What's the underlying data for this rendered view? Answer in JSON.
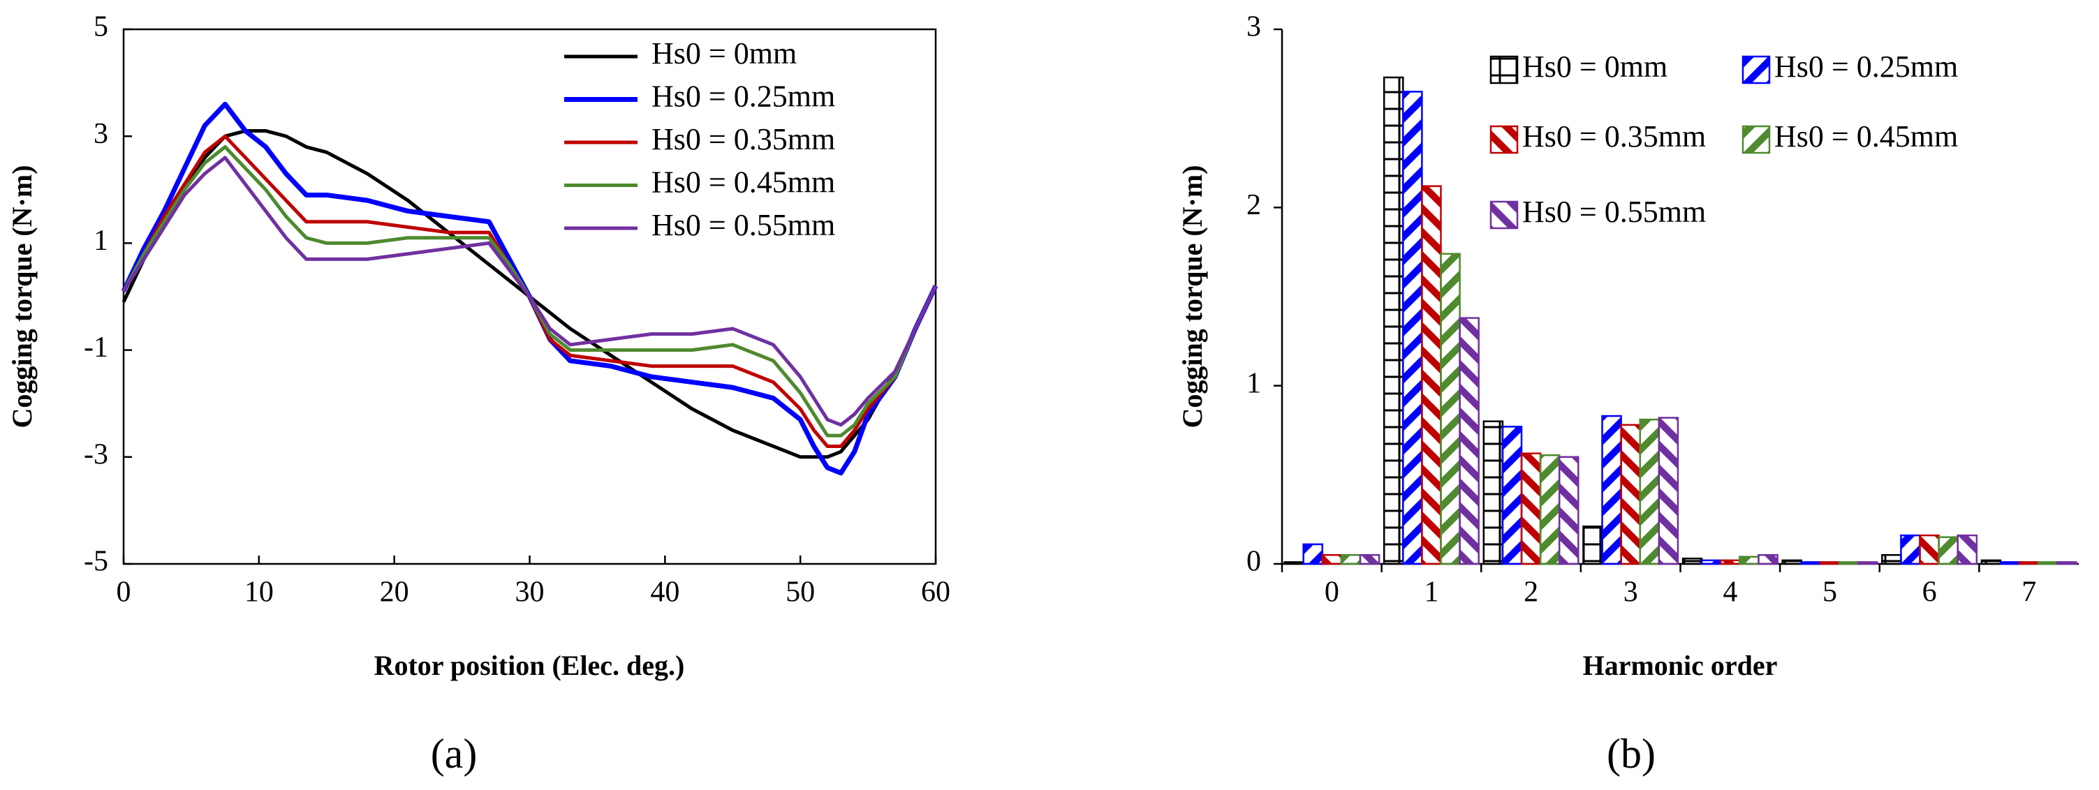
{
  "chart_data": [
    {
      "type": "line",
      "panel_label": "(a)",
      "x_label": "Rotor position (Elec. deg.)",
      "y_label": "Cogging torque (N·m)",
      "x": [
        0,
        1.5,
        3,
        4.5,
        6,
        7.5,
        9,
        10.5,
        12,
        13.5,
        15,
        18,
        21,
        24,
        27,
        28.5,
        30,
        31.5,
        33,
        36,
        39,
        42,
        45,
        48,
        50,
        51,
        52,
        53,
        54,
        55,
        57,
        58.5,
        60
      ],
      "xlim": [
        0,
        60
      ],
      "xticks": [
        0,
        10,
        20,
        30,
        40,
        50,
        60
      ],
      "ylim": [
        -5,
        5
      ],
      "yticks": [
        -5,
        -3,
        -1,
        1,
        3,
        5
      ],
      "series": [
        {
          "name": "Hs0 = 0mm",
          "color": "#000000",
          "values": [
            -0.1,
            0.7,
            1.5,
            2.1,
            2.6,
            3.0,
            3.1,
            3.1,
            3.0,
            2.8,
            2.7,
            2.3,
            1.8,
            1.2,
            0.6,
            0.3,
            0,
            -0.3,
            -0.6,
            -1.1,
            -1.6,
            -2.1,
            -2.5,
            -2.8,
            -3.0,
            -3.0,
            -3.0,
            -2.9,
            -2.6,
            -2.3,
            -1.4,
            -0.6,
            0.2
          ]
        },
        {
          "name": "Hs0 = 0.25mm",
          "color": "#0000ff",
          "values": [
            0.1,
            0.9,
            1.6,
            2.4,
            3.2,
            3.6,
            3.1,
            2.8,
            2.3,
            1.9,
            1.9,
            1.8,
            1.6,
            1.5,
            1.4,
            0.7,
            0,
            -0.8,
            -1.2,
            -1.3,
            -1.5,
            -1.6,
            -1.7,
            -1.9,
            -2.3,
            -2.8,
            -3.2,
            -3.3,
            -2.9,
            -2.2,
            -1.5,
            -0.6,
            0.2
          ]
        },
        {
          "name": "Hs0 = 0.35mm",
          "color": "#c00000",
          "values": [
            0.1,
            0.8,
            1.5,
            2.1,
            2.7,
            3.0,
            2.6,
            2.2,
            1.8,
            1.4,
            1.4,
            1.4,
            1.3,
            1.2,
            1.2,
            0.6,
            0,
            -0.8,
            -1.1,
            -1.2,
            -1.3,
            -1.3,
            -1.3,
            -1.6,
            -2.1,
            -2.5,
            -2.8,
            -2.8,
            -2.5,
            -2.1,
            -1.5,
            -0.6,
            0.2
          ]
        },
        {
          "name": "Hs0 = 0.45mm",
          "color": "#4e8a2e",
          "values": [
            0.1,
            0.8,
            1.4,
            2.0,
            2.5,
            2.8,
            2.4,
            2.0,
            1.5,
            1.1,
            1.0,
            1.0,
            1.1,
            1.1,
            1.1,
            0.6,
            0,
            -0.7,
            -1.0,
            -1.0,
            -1.0,
            -1.0,
            -0.9,
            -1.2,
            -1.8,
            -2.2,
            -2.6,
            -2.6,
            -2.4,
            -2.0,
            -1.5,
            -0.6,
            0.2
          ]
        },
        {
          "name": "Hs0 = 0.55mm",
          "color": "#7030a0",
          "values": [
            0.1,
            0.7,
            1.3,
            1.9,
            2.3,
            2.6,
            2.1,
            1.6,
            1.1,
            0.7,
            0.7,
            0.7,
            0.8,
            0.9,
            1.0,
            0.5,
            0,
            -0.6,
            -0.9,
            -0.8,
            -0.7,
            -0.7,
            -0.6,
            -0.9,
            -1.5,
            -1.9,
            -2.3,
            -2.4,
            -2.2,
            -1.9,
            -1.4,
            -0.6,
            0.2
          ]
        }
      ]
    },
    {
      "type": "bar",
      "panel_label": "(b)",
      "x_label": "Harmonic order",
      "y_label": "Cogging torque (N·m)",
      "categories": [
        "0",
        "1",
        "2",
        "3",
        "4",
        "5",
        "6",
        "7"
      ],
      "ylim": [
        0,
        3
      ],
      "yticks": [
        0,
        1,
        2,
        3
      ],
      "series": [
        {
          "name": "Hs0 = 0mm",
          "color": "#000000",
          "values": [
            0.01,
            2.73,
            0.8,
            0.21,
            0.03,
            0.02,
            0.05,
            0.02
          ]
        },
        {
          "name": "Hs0 = 0.25mm",
          "color": "#0000ff",
          "values": [
            0.11,
            2.65,
            0.77,
            0.83,
            0.02,
            0.01,
            0.16,
            0.01
          ]
        },
        {
          "name": "Hs0 = 0.35mm",
          "color": "#c00000",
          "values": [
            0.05,
            2.12,
            0.62,
            0.78,
            0.02,
            0.01,
            0.16,
            0.01
          ]
        },
        {
          "name": "Hs0 = 0.45mm",
          "color": "#4e8a2e",
          "values": [
            0.05,
            1.74,
            0.61,
            0.81,
            0.04,
            0.01,
            0.15,
            0.01
          ]
        },
        {
          "name": "Hs0 = 0.55mm",
          "color": "#7030a0",
          "values": [
            0.05,
            1.38,
            0.6,
            0.82,
            0.05,
            0.01,
            0.16,
            0.01
          ]
        }
      ]
    }
  ]
}
